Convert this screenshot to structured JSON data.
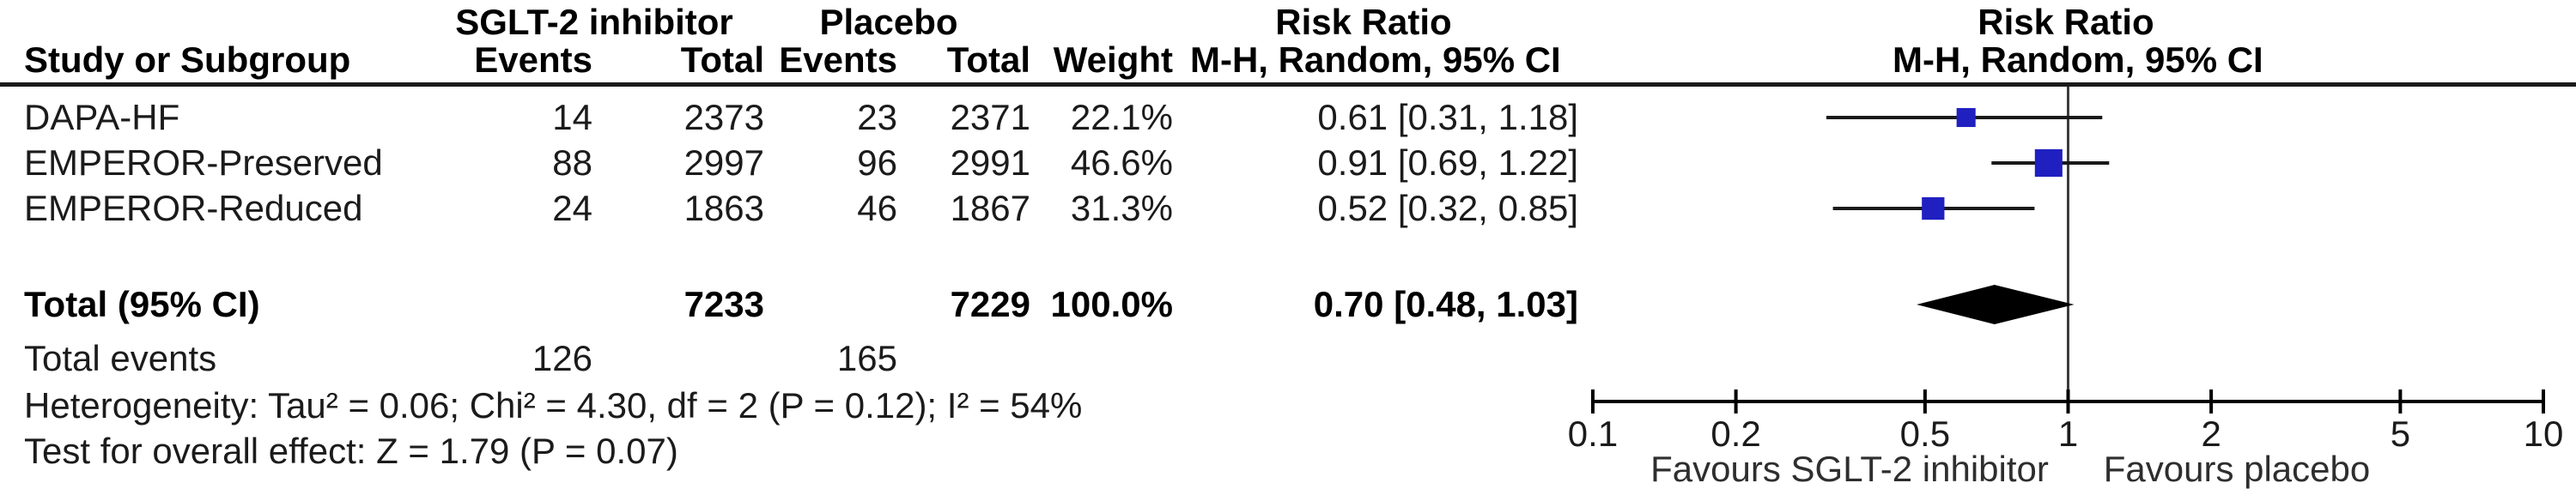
{
  "table": {
    "group_headers": {
      "sglt2": "SGLT-2 inhibitor",
      "placebo": "Placebo",
      "risk_ratio_left": "Risk Ratio",
      "risk_ratio_right": "Risk Ratio"
    },
    "col_headers": {
      "study": "Study or Subgroup",
      "events1": "Events",
      "total1": "Total",
      "events2": "Events",
      "total2": "Total",
      "weight": "Weight",
      "mh_left": "M-H, Random, 95% CI",
      "mh_right": "M-H, Random, 95% CI"
    },
    "rows": [
      {
        "study": "DAPA-HF",
        "e1": "14",
        "t1": "2373",
        "e2": "23",
        "t2": "2371",
        "weight": "22.1%",
        "rr": "0.61 [0.31, 1.18]"
      },
      {
        "study": "EMPEROR-Preserved",
        "e1": "88",
        "t1": "2997",
        "e2": "96",
        "t2": "2991",
        "weight": "46.6%",
        "rr": "0.91 [0.69, 1.22]"
      },
      {
        "study": "EMPEROR-Reduced",
        "e1": "24",
        "t1": "1863",
        "e2": "46",
        "t2": "1867",
        "weight": "31.3%",
        "rr": "0.52 [0.32, 0.85]"
      }
    ],
    "total_row": {
      "label": "Total (95% CI)",
      "t1": "7233",
      "t2": "7229",
      "weight": "100.0%",
      "rr": "0.70 [0.48, 1.03]"
    },
    "total_events": {
      "label": "Total events",
      "e1": "126",
      "e2": "165"
    },
    "heterogeneity": "Heterogeneity: Tau² = 0.06; Chi² = 4.30, df = 2 (P = 0.12); I² = 54%",
    "overall_effect": "Test for overall effect: Z = 1.79 (P = 0.07)"
  },
  "chart_data": {
    "type": "forest",
    "x_scale": "log10",
    "axis_range": [
      0.1,
      10
    ],
    "axis_ticks": [
      "0.1",
      "0.2",
      "0.5",
      "1",
      "2",
      "5",
      "10"
    ],
    "null_value": 1,
    "favours_left": "Favours SGLT-2 inhibitor",
    "favours_right": "Favours placebo",
    "marker_color": "#2020C0",
    "ci_color": "#1a1a1a",
    "studies": [
      {
        "name": "DAPA-HF",
        "rr": 0.61,
        "ci_low": 0.31,
        "ci_high": 1.18,
        "weight_pct": 22.1
      },
      {
        "name": "EMPEROR-Preserved",
        "rr": 0.91,
        "ci_low": 0.69,
        "ci_high": 1.22,
        "weight_pct": 46.6
      },
      {
        "name": "EMPEROR-Reduced",
        "rr": 0.52,
        "ci_low": 0.32,
        "ci_high": 0.85,
        "weight_pct": 31.3
      }
    ],
    "pooled": {
      "rr": 0.7,
      "ci_low": 0.48,
      "ci_high": 1.03,
      "label": "Total (95% CI)"
    }
  }
}
